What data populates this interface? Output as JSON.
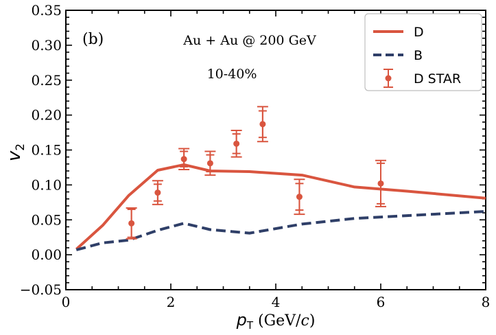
{
  "chart_data": {
    "type": "line",
    "panel_label": "(b)",
    "annotations": [
      "Au + Au @ 200 GeV",
      "10-40%"
    ],
    "xlabel": {
      "symbol": "p",
      "subscript": "T",
      "unit_open": " (GeV/",
      "unit_var": "c",
      "unit_close": ")"
    },
    "ylabel": {
      "symbol": "v",
      "subscript": "2"
    },
    "xlim": [
      0,
      8
    ],
    "ylim": [
      -0.05,
      0.35
    ],
    "x_ticks": [
      0,
      2,
      4,
      6,
      8
    ],
    "x_tick_labels": [
      "0",
      "2",
      "4",
      "6",
      "8"
    ],
    "y_ticks": [
      -0.05,
      0.0,
      0.05,
      0.1,
      0.15,
      0.2,
      0.25,
      0.3,
      0.35
    ],
    "y_tick_labels": [
      "−0.05",
      "0.00",
      "0.05",
      "0.10",
      "0.15",
      "0.20",
      "0.25",
      "0.30",
      "0.35"
    ],
    "legend_position": "top-right",
    "series": [
      {
        "name": "D",
        "kind": "line",
        "style": "solid",
        "color": "#d9553f",
        "x": [
          0.2,
          0.7,
          1.2,
          1.75,
          2.25,
          2.75,
          3.5,
          4.5,
          5.5,
          6.5,
          8.0
        ],
        "y": [
          0.008,
          0.042,
          0.085,
          0.121,
          0.129,
          0.12,
          0.119,
          0.114,
          0.097,
          0.091,
          0.081
        ]
      },
      {
        "name": "B",
        "kind": "line",
        "style": "dashed",
        "color": "#2f3f68",
        "x": [
          0.2,
          0.7,
          1.2,
          1.75,
          2.25,
          2.75,
          3.5,
          4.5,
          5.5,
          6.5,
          8.0
        ],
        "y": [
          0.007,
          0.017,
          0.021,
          0.035,
          0.045,
          0.036,
          0.031,
          0.044,
          0.052,
          0.056,
          0.062
        ]
      },
      {
        "name": "D STAR",
        "kind": "points",
        "color": "#d9553f",
        "x": [
          1.25,
          1.75,
          2.25,
          2.75,
          3.25,
          3.75,
          4.45,
          6.0
        ],
        "y": [
          0.045,
          0.089,
          0.137,
          0.131,
          0.159,
          0.187,
          0.083,
          0.102
        ],
        "stat_err": [
          0.02,
          0.012,
          0.011,
          0.012,
          0.014,
          0.019,
          0.019,
          0.029
        ],
        "sys_err": [
          0.022,
          0.017,
          0.015,
          0.017,
          0.019,
          0.025,
          0.025,
          0.033
        ]
      }
    ]
  }
}
